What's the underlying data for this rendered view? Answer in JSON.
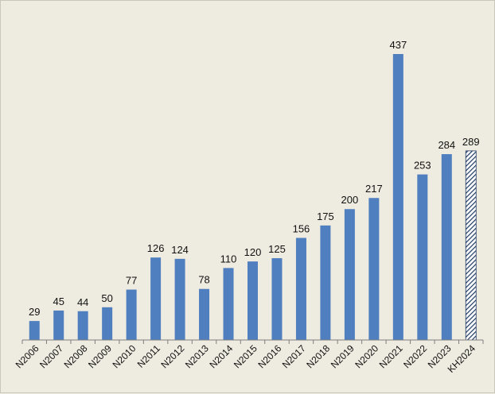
{
  "chart_data": {
    "type": "bar",
    "title": "",
    "xlabel": "",
    "ylabel": "",
    "ylim": [
      0,
      437
    ],
    "grid": false,
    "categories": [
      "N2006",
      "N2007",
      "N2008",
      "N2009",
      "N2010",
      "N2011",
      "N2012",
      "N2013",
      "N2014",
      "N2015",
      "N2016",
      "N2017",
      "N2018",
      "N2019",
      "N2020",
      "N2021",
      "N2022",
      "N2023",
      "KH2024"
    ],
    "values": [
      29,
      45,
      44,
      50,
      77,
      126,
      124,
      78,
      110,
      120,
      125,
      156,
      175,
      200,
      217,
      437,
      253,
      284,
      289
    ],
    "styles": [
      "solid",
      "solid",
      "solid",
      "solid",
      "solid",
      "solid",
      "solid",
      "solid",
      "solid",
      "solid",
      "solid",
      "solid",
      "solid",
      "solid",
      "solid",
      "solid",
      "solid",
      "solid",
      "hatched"
    ],
    "colors": {
      "bar": "#4f7fbf",
      "hatch": "#1f3a63",
      "axis": "#7f7f7f",
      "background": "#eeebe0"
    }
  }
}
